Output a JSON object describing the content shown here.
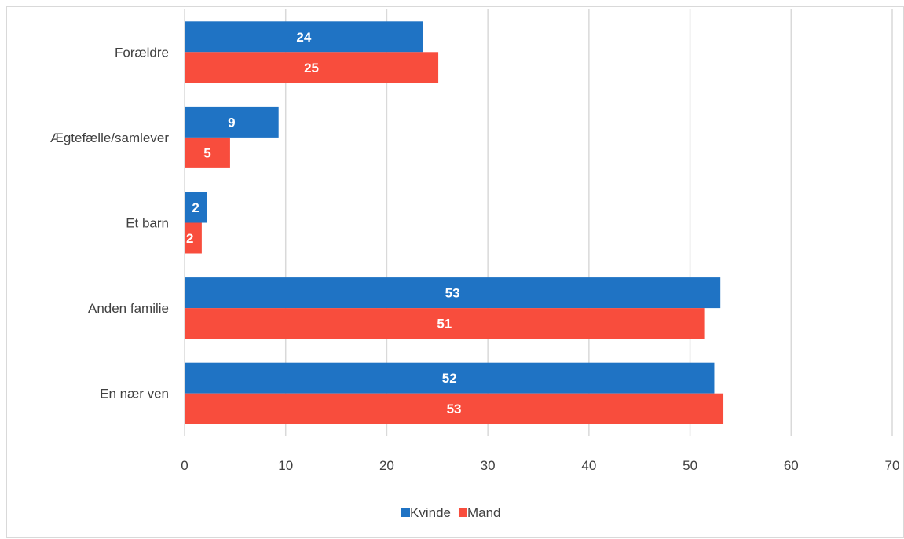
{
  "chart_data": {
    "type": "bar",
    "orientation": "horizontal",
    "categories": [
      "Forældre",
      "Ægtefælle/samlever",
      "Et barn",
      "Anden familie",
      "En nær ven"
    ],
    "series": [
      {
        "name": "Kvinde",
        "color": "#1f73c4",
        "values": [
          23.6,
          9.3,
          2.2,
          53.0,
          52.4
        ],
        "labels": [
          "24",
          "9",
          "2",
          "53",
          "52"
        ]
      },
      {
        "name": "Mand",
        "color": "#f84d3d",
        "values": [
          25.1,
          4.5,
          1.7,
          51.4,
          53.3
        ],
        "labels": [
          "25",
          "5",
          "2",
          "51",
          "53"
        ]
      }
    ],
    "xlim": [
      0,
      70
    ],
    "xticks": [
      "0",
      "10",
      "20",
      "30",
      "40",
      "50",
      "60",
      "70"
    ],
    "grid": "vertical",
    "legend": "bottom",
    "title": "",
    "xlabel": "",
    "ylabel": ""
  }
}
